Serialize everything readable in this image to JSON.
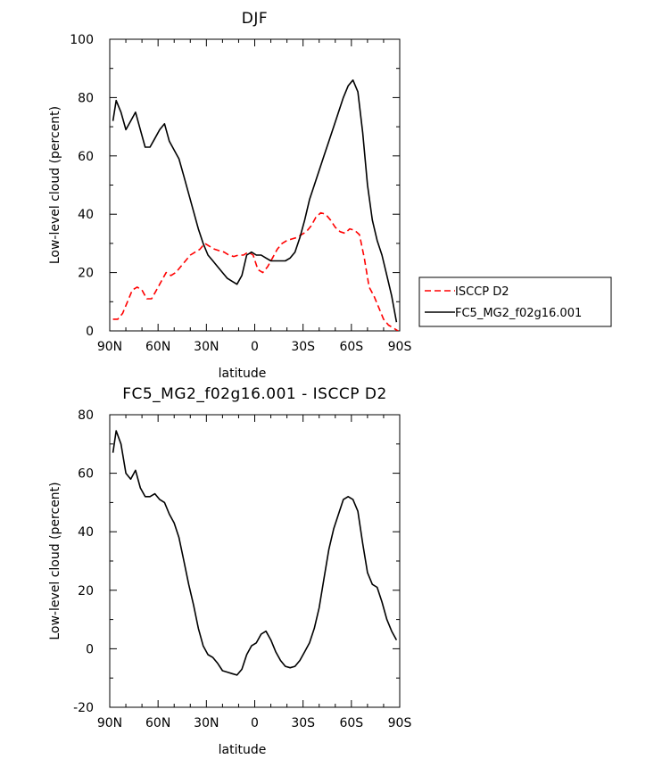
{
  "chart_data": [
    {
      "type": "line",
      "title": "DJF",
      "xlabel": "latitude",
      "ylabel": "Low-level cloud (percent)",
      "xlim": [
        90,
        -90
      ],
      "ylim": [
        0,
        100
      ],
      "xticks": [
        90,
        60,
        30,
        0,
        -30,
        -60,
        -90
      ],
      "xtick_labels": [
        "90N",
        "60N",
        "30N",
        "0",
        "30S",
        "60S",
        "90S"
      ],
      "yticks": [
        0,
        20,
        40,
        60,
        80,
        100
      ],
      "ytick_labels": [
        "0",
        "20",
        "40",
        "60",
        "80",
        "100"
      ],
      "legend": {
        "placement": "outside-right"
      },
      "series": [
        {
          "name": "ISCCP D2",
          "color": "#ff0000",
          "dash": "dashed",
          "x": [
            88,
            85,
            82,
            79,
            76,
            73,
            70,
            67,
            64,
            61,
            58,
            55,
            52,
            49,
            46,
            43,
            40,
            37,
            34,
            31,
            28,
            25,
            22,
            19,
            16,
            13,
            10,
            7,
            4,
            1,
            -2,
            -5,
            -8,
            -11,
            -14,
            -17,
            -20,
            -23,
            -26,
            -29,
            -32,
            -35,
            -38,
            -41,
            -44,
            -47,
            -50,
            -53,
            -56,
            -59,
            -62,
            -65,
            -68,
            -71,
            -74,
            -77,
            -80,
            -83,
            -86,
            -89
          ],
          "y": [
            4,
            4,
            6,
            10,
            14,
            15,
            14,
            11,
            11,
            14,
            17,
            20,
            19,
            20,
            22,
            24,
            26,
            27,
            28,
            30,
            29,
            28,
            27.5,
            27,
            26,
            25.5,
            26,
            26,
            27,
            26,
            21,
            20,
            22,
            25,
            28,
            30,
            31,
            31.5,
            32,
            33,
            34,
            36,
            39,
            40.5,
            40,
            38,
            35.5,
            34,
            33.5,
            35,
            34.5,
            33,
            25,
            15,
            12,
            8,
            4,
            2,
            1,
            0
          ]
        },
        {
          "name": "FC5_MG2_f02g16.001",
          "color": "#000000",
          "dash": "solid",
          "x": [
            88,
            86,
            83,
            80,
            77,
            74,
            71,
            68,
            65,
            62,
            59,
            56,
            53,
            50,
            47,
            44,
            41,
            38,
            35,
            32,
            29,
            26,
            23,
            20,
            17,
            14,
            11,
            8,
            5,
            2,
            -1,
            -4,
            -7,
            -10,
            -13,
            -16,
            -19,
            -22,
            -25,
            -28,
            -31,
            -34,
            -37,
            -40,
            -43,
            -46,
            -49,
            -52,
            -55,
            -58,
            -61,
            -64,
            -67,
            -70,
            -73,
            -76,
            -79,
            -82,
            -85,
            -88
          ],
          "y": [
            72,
            79,
            75,
            69,
            72,
            75,
            69,
            63,
            63,
            66,
            69,
            71,
            65,
            62,
            59,
            53,
            47,
            41,
            35,
            30,
            26,
            24,
            22,
            20,
            18,
            17,
            16,
            19,
            26,
            27,
            26,
            26,
            25,
            24,
            24,
            24,
            24,
            25,
            27,
            32,
            38,
            45,
            50,
            55,
            60,
            65,
            70,
            75,
            80,
            84,
            86,
            82,
            68,
            50,
            38,
            31,
            26,
            19,
            12,
            3
          ]
        }
      ]
    },
    {
      "type": "line",
      "title": "FC5_MG2_f02g16.001 - ISCCP D2",
      "xlabel": "latitude",
      "ylabel": "Low-level cloud (percent)",
      "xlim": [
        90,
        -90
      ],
      "ylim": [
        -20,
        80
      ],
      "xticks": [
        90,
        60,
        30,
        0,
        -30,
        -60,
        -90
      ],
      "xtick_labels": [
        "90N",
        "60N",
        "30N",
        "0",
        "30S",
        "60S",
        "90S"
      ],
      "yticks": [
        -20,
        0,
        20,
        40,
        60,
        80
      ],
      "ytick_labels": [
        "-20",
        "0",
        "20",
        "40",
        "60",
        "80"
      ],
      "series": [
        {
          "color": "#000000",
          "dash": "solid",
          "x": [
            88,
            86,
            83,
            80,
            77,
            74,
            71,
            68,
            65,
            62,
            59,
            56,
            53,
            50,
            47,
            44,
            41,
            38,
            35,
            32,
            29,
            26,
            23,
            20,
            17,
            14,
            11,
            8,
            5,
            2,
            -1,
            -4,
            -7,
            -10,
            -13,
            -16,
            -19,
            -22,
            -25,
            -28,
            -31,
            -34,
            -37,
            -40,
            -43,
            -46,
            -49,
            -52,
            -55,
            -58,
            -61,
            -64,
            -67,
            -70,
            -73,
            -76,
            -79,
            -82,
            -85,
            -88
          ],
          "y": [
            67,
            74.5,
            70,
            60,
            58,
            61,
            55,
            52,
            52,
            53,
            51,
            50,
            46,
            43,
            38,
            30,
            22,
            15,
            7,
            1,
            -2,
            -3,
            -5,
            -7.5,
            -8,
            -8.5,
            -9,
            -7,
            -2,
            1,
            2,
            5,
            6,
            3,
            -1,
            -4,
            -6,
            -6.5,
            -6,
            -4,
            -1,
            2,
            7,
            14,
            24,
            34,
            41,
            46,
            51,
            52,
            51,
            47,
            36,
            26,
            22,
            21,
            16,
            10,
            6,
            3
          ]
        }
      ]
    }
  ]
}
